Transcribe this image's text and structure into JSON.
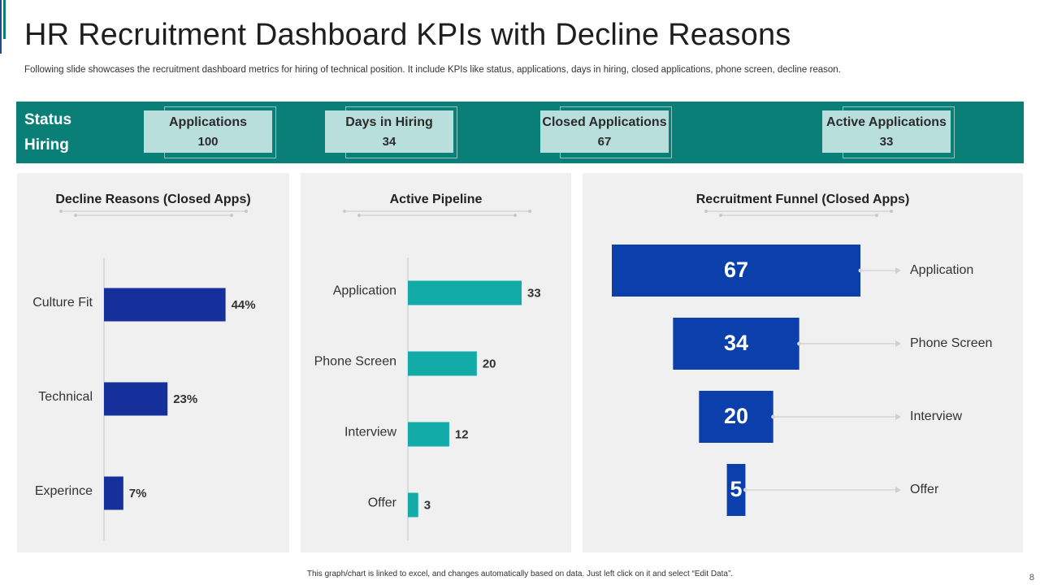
{
  "header": {
    "title": "HR Recruitment Dashboard KPIs with Decline Reasons",
    "subtitle": "Following slide showcases the recruitment dashboard metrics for hiring of technical position. It include KPIs like status, applications, days in hiring, closed applications, phone screen, decline reason."
  },
  "status": {
    "line1": "Status",
    "line2": "Hiring",
    "kpis": [
      {
        "label": "Applications",
        "value": "100"
      },
      {
        "label": "Days in Hiring",
        "value": "34"
      },
      {
        "label": "Closed Applications",
        "value": "67"
      },
      {
        "label": "Active Applications",
        "value": "33"
      }
    ]
  },
  "colors": {
    "teal": "#0a7f78",
    "teal_bar": "#12aba7",
    "navy_bar": "#15309a",
    "funnel_blue": "#0b3fab",
    "accent": "#0a7f78",
    "accent_dark": "#1b4f8a"
  },
  "chart_data": [
    {
      "type": "bar",
      "orientation": "horizontal",
      "title": "Decline Reasons (Closed Apps)",
      "categories": [
        "Culture Fit",
        "Technical",
        "Experince"
      ],
      "values": [
        44,
        23,
        7
      ],
      "labels": [
        "44%",
        "23%",
        "7%"
      ],
      "unit": "%",
      "xlim": [
        0,
        100
      ]
    },
    {
      "type": "bar",
      "orientation": "horizontal",
      "title": "Active Pipeline",
      "categories": [
        "Application",
        "Phone Screen",
        "Interview",
        "Offer"
      ],
      "values": [
        33,
        20,
        12,
        3
      ],
      "labels": [
        "33",
        "20",
        "12",
        "3"
      ],
      "xlim": [
        0,
        70
      ]
    },
    {
      "type": "bar",
      "subtype": "funnel",
      "title": "Recruitment Funnel (Closed Apps)",
      "categories": [
        "Application",
        "Phone Screen",
        "Interview",
        "Offer"
      ],
      "values": [
        67,
        34,
        20,
        5
      ],
      "labels": [
        "67",
        "34",
        "20",
        "5"
      ]
    }
  ],
  "footer": {
    "note": "This graph/chart is linked to excel, and changes automatically based on data. Just left click on it and select “Edit Data”.",
    "page": "8"
  }
}
